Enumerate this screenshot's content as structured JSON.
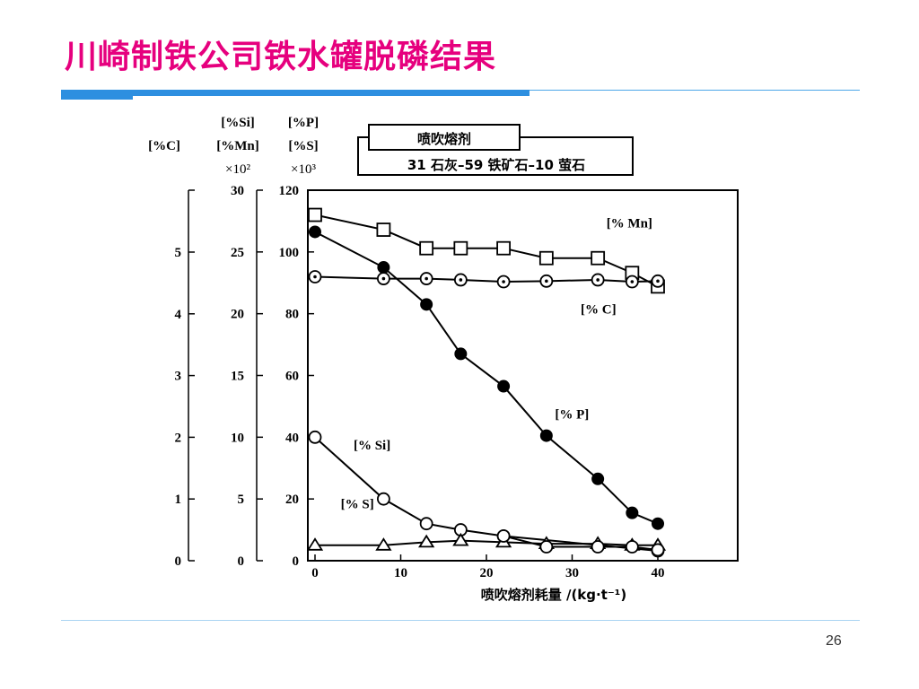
{
  "slide": {
    "title": "川崎制铁公司铁水罐脱磷结果",
    "page_number": "26"
  },
  "colors": {
    "title": "#e6007e",
    "rule": "#2d8fe0",
    "ink": "#000000"
  },
  "chart_data": {
    "type": "line",
    "title": "",
    "xlabel": "喷吹熔剂耗量 /(kg·t⁻¹)",
    "xlim": [
      0,
      40
    ],
    "x_ticks": [
      0,
      10,
      20,
      30,
      40
    ],
    "grid": false,
    "inset": {
      "heading": "喷吹熔剂",
      "composition": "31 石灰–59 铁矿石–10 萤石"
    },
    "axes": [
      {
        "id": "p",
        "header_top": "[%P]",
        "header_mid": "[%S]",
        "header_unit": "×10³",
        "ylim": [
          0,
          120
        ],
        "ticks": [
          "0",
          "20",
          "40",
          "60",
          "80",
          "100",
          "120"
        ]
      },
      {
        "id": "si",
        "header_top": "[%Si]",
        "header_mid": "[%Mn]",
        "header_unit": "×10²",
        "ylim": [
          0,
          30
        ],
        "ticks": [
          "0",
          "5",
          "10",
          "15",
          "20",
          "25",
          "30"
        ]
      },
      {
        "id": "c",
        "header_top": "",
        "header_mid": "[%C]",
        "header_unit": "",
        "ylim": [
          0,
          6
        ],
        "ticks": [
          "0",
          "1",
          "2",
          "3",
          "4",
          "5"
        ]
      }
    ],
    "series": [
      {
        "name": "[% Mn]",
        "marker": "square",
        "axis": "si",
        "x": [
          0,
          8,
          13,
          17,
          22,
          27,
          33,
          37,
          40
        ],
        "y": [
          28.0,
          26.8,
          25.3,
          25.3,
          25.3,
          24.5,
          24.5,
          23.3,
          22.2
        ],
        "label_x": 34,
        "label_y": 108
      },
      {
        "name": "[% C]",
        "marker": "dot-circle",
        "axis": "c",
        "x": [
          0,
          8,
          13,
          17,
          22,
          27,
          33,
          37,
          40
        ],
        "y": [
          4.6,
          4.57,
          4.57,
          4.55,
          4.52,
          4.53,
          4.55,
          4.52,
          4.53
        ],
        "label_x": 31,
        "label_y": 80
      },
      {
        "name": "[% P]",
        "marker": "filled-circle",
        "axis": "p",
        "x": [
          0,
          8,
          13,
          17,
          22,
          27,
          33,
          37,
          40
        ],
        "y": [
          106.5,
          95,
          83,
          67,
          56.5,
          40.5,
          26.5,
          15.5,
          12
        ],
        "label_x": 28,
        "label_y": 46
      },
      {
        "name": "[% Si]",
        "marker": "open-circle",
        "axis": "si",
        "x": [
          0,
          8,
          13,
          17,
          22,
          40
        ],
        "y": [
          10.0,
          5.0,
          3.0,
          2.5,
          2.0,
          0.8
        ],
        "label_x": 4.5,
        "label_y": 36
      },
      {
        "name": "[% S]",
        "marker": "triangle",
        "axis": "p",
        "x": [
          0,
          8,
          13,
          17,
          22,
          27,
          33,
          37,
          40
        ],
        "y": [
          5.0,
          5.0,
          6.0,
          6.5,
          6.0,
          5.5,
          5.5,
          5.0,
          5.0
        ],
        "label_x": 3,
        "label_y": 17
      },
      {
        "name": "",
        "marker": "open-circle",
        "axis": "p",
        "x": [
          22,
          27,
          33,
          37,
          40
        ],
        "y": [
          8,
          4.5,
          4.5,
          4.5,
          3.5
        ],
        "label_x": null,
        "label_y": null
      }
    ]
  }
}
